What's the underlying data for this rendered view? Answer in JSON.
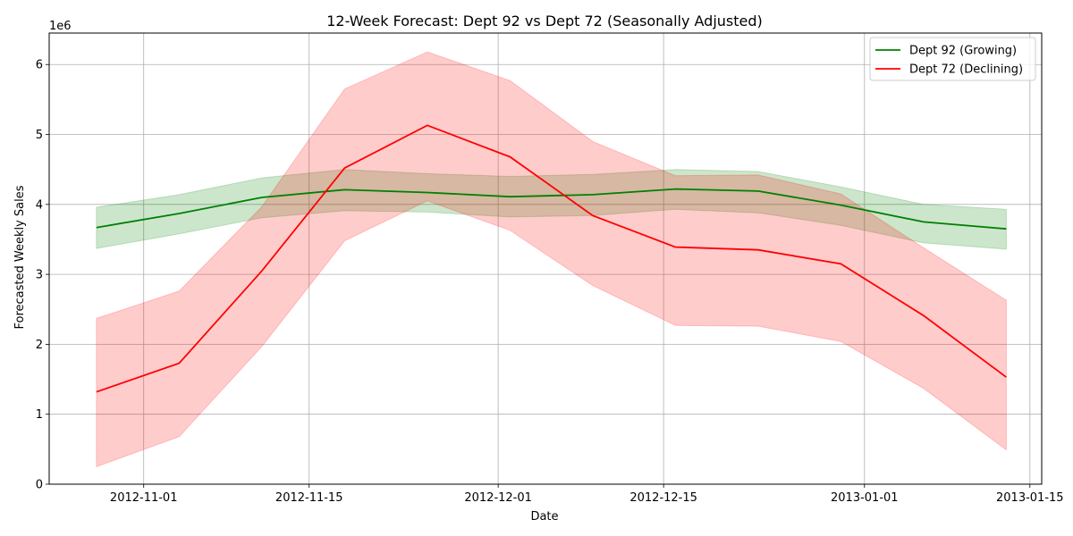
{
  "chart_data": {
    "type": "line",
    "title": "12-Week Forecast: Dept 92 vs Dept 72 (Seasonally Adjusted)",
    "xlabel": "Date",
    "ylabel": "Forecasted Weekly Sales",
    "y_offset_label": "1e6",
    "x": [
      "2012-10-28",
      "2012-11-04",
      "2012-11-11",
      "2012-11-18",
      "2012-11-25",
      "2012-12-02",
      "2012-12-09",
      "2012-12-16",
      "2012-12-23",
      "2012-12-30",
      "2013-01-06",
      "2013-01-13"
    ],
    "xlim": [
      "2012-10-24",
      "2013-01-16"
    ],
    "ylim": [
      0,
      6.45
    ],
    "x_ticks": [
      "2012-11-01",
      "2012-11-15",
      "2012-12-01",
      "2012-12-15",
      "2013-01-01",
      "2013-01-15"
    ],
    "y_ticks": [
      0,
      1,
      2,
      3,
      4,
      5,
      6
    ],
    "grid": true,
    "legend_position": "top-right",
    "series": [
      {
        "name": "Dept 92 (Growing)",
        "color": "#008000",
        "values": [
          3.67,
          3.87,
          4.1,
          4.21,
          4.17,
          4.11,
          4.14,
          4.22,
          4.19,
          3.99,
          3.75,
          3.65
        ],
        "lower": [
          3.37,
          3.58,
          3.81,
          3.91,
          3.89,
          3.82,
          3.84,
          3.93,
          3.88,
          3.7,
          3.45,
          3.36
        ],
        "upper": [
          3.96,
          4.14,
          4.38,
          4.5,
          4.44,
          4.4,
          4.43,
          4.5,
          4.47,
          4.25,
          4.0,
          3.93
        ]
      },
      {
        "name": "Dept 72 (Declining)",
        "color": "#ff0000",
        "values": [
          1.32,
          1.73,
          3.05,
          4.52,
          5.13,
          4.68,
          3.84,
          3.39,
          3.35,
          3.15,
          2.41,
          1.53
        ],
        "lower": [
          0.25,
          0.68,
          1.97,
          3.48,
          4.05,
          3.63,
          2.84,
          2.27,
          2.26,
          2.04,
          1.37,
          0.49
        ],
        "upper": [
          2.37,
          2.76,
          3.97,
          5.65,
          6.18,
          5.77,
          4.9,
          4.41,
          4.42,
          4.15,
          3.38,
          2.63
        ]
      }
    ]
  }
}
